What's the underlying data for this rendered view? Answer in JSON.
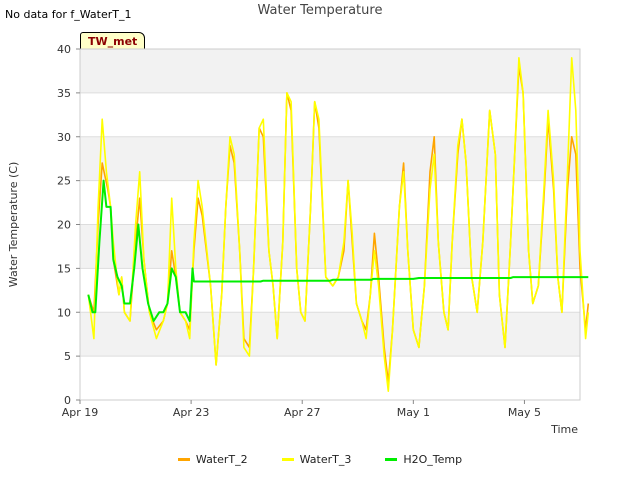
{
  "header": {
    "nodata_text": "No data for f_WaterT_1",
    "title": "Water Temperature",
    "tag": "TW_met"
  },
  "chart_data": {
    "type": "line",
    "title": "Water Temperature",
    "xlabel": "Time",
    "ylabel": "Water Temperature (C)",
    "ylim": [
      0,
      40
    ],
    "yticks": [
      0,
      5,
      10,
      15,
      20,
      25,
      30,
      35,
      40
    ],
    "xlim": [
      0,
      18
    ],
    "xticks": [
      {
        "value": 0,
        "label": "Apr 19"
      },
      {
        "value": 4,
        "label": "Apr 23"
      },
      {
        "value": 8,
        "label": "Apr 27"
      },
      {
        "value": 12,
        "label": "May 1"
      },
      {
        "value": 16,
        "label": "May 5"
      }
    ],
    "x_unit": "days since Apr 19",
    "grid": true,
    "legend_placement": "bottom",
    "series": [
      {
        "name": "WaterT_2",
        "color": "#FFA500",
        "points": [
          [
            0.3,
            12
          ],
          [
            0.5,
            10
          ],
          [
            0.65,
            20
          ],
          [
            0.8,
            27
          ],
          [
            1.0,
            24
          ],
          [
            1.1,
            22
          ],
          [
            1.2,
            16
          ],
          [
            1.4,
            12
          ],
          [
            1.5,
            14
          ],
          [
            1.6,
            10
          ],
          [
            1.8,
            9
          ],
          [
            2.0,
            18
          ],
          [
            2.15,
            23
          ],
          [
            2.3,
            16
          ],
          [
            2.5,
            10
          ],
          [
            2.75,
            8
          ],
          [
            3.0,
            9
          ],
          [
            3.15,
            11
          ],
          [
            3.3,
            17
          ],
          [
            3.45,
            14
          ],
          [
            3.6,
            10
          ],
          [
            3.8,
            9
          ],
          [
            3.95,
            8
          ],
          [
            4.1,
            17
          ],
          [
            4.25,
            23
          ],
          [
            4.4,
            21
          ],
          [
            4.7,
            13
          ],
          [
            4.9,
            4
          ],
          [
            5.1,
            12
          ],
          [
            5.25,
            22
          ],
          [
            5.4,
            29
          ],
          [
            5.55,
            27
          ],
          [
            5.75,
            17
          ],
          [
            5.9,
            7
          ],
          [
            6.1,
            6
          ],
          [
            6.25,
            15
          ],
          [
            6.45,
            31
          ],
          [
            6.6,
            30
          ],
          [
            6.8,
            17
          ],
          [
            6.95,
            13
          ],
          [
            7.1,
            7
          ],
          [
            7.3,
            18
          ],
          [
            7.45,
            35
          ],
          [
            7.6,
            33
          ],
          [
            7.8,
            15
          ],
          [
            7.95,
            10
          ],
          [
            8.1,
            9
          ],
          [
            8.3,
            22
          ],
          [
            8.45,
            34
          ],
          [
            8.6,
            31
          ],
          [
            8.85,
            14
          ],
          [
            9.1,
            13
          ],
          [
            9.3,
            14
          ],
          [
            9.5,
            17
          ],
          [
            9.65,
            25
          ],
          [
            9.8,
            18
          ],
          [
            9.95,
            11
          ],
          [
            10.15,
            9
          ],
          [
            10.3,
            8
          ],
          [
            10.45,
            12
          ],
          [
            10.6,
            19
          ],
          [
            10.75,
            14
          ],
          [
            10.95,
            6
          ],
          [
            11.1,
            2
          ],
          [
            11.25,
            8
          ],
          [
            11.5,
            22
          ],
          [
            11.65,
            27
          ],
          [
            11.8,
            17
          ],
          [
            12.0,
            8
          ],
          [
            12.2,
            6
          ],
          [
            12.4,
            13
          ],
          [
            12.6,
            26
          ],
          [
            12.75,
            30
          ],
          [
            12.9,
            18
          ],
          [
            13.1,
            10
          ],
          [
            13.25,
            8
          ],
          [
            13.4,
            18
          ],
          [
            13.6,
            28
          ],
          [
            13.75,
            32
          ],
          [
            13.9,
            27
          ],
          [
            14.1,
            14
          ],
          [
            14.3,
            10
          ],
          [
            14.5,
            18
          ],
          [
            14.75,
            33
          ],
          [
            14.95,
            28
          ],
          [
            15.1,
            12
          ],
          [
            15.3,
            6
          ],
          [
            15.5,
            18
          ],
          [
            15.65,
            28
          ],
          [
            15.8,
            38
          ],
          [
            15.95,
            35
          ],
          [
            16.15,
            17
          ],
          [
            16.3,
            11
          ],
          [
            16.5,
            13
          ],
          [
            16.7,
            23
          ],
          [
            16.85,
            32
          ],
          [
            17.05,
            24
          ],
          [
            17.2,
            14
          ],
          [
            17.35,
            10
          ],
          [
            17.55,
            24
          ],
          [
            17.7,
            30
          ],
          [
            17.85,
            28
          ],
          [
            18.0,
            15
          ],
          [
            18.2,
            8
          ],
          [
            18.3,
            11
          ]
        ]
      },
      {
        "name": "WaterT_3",
        "color": "#FFFF00",
        "points": [
          [
            0.3,
            12
          ],
          [
            0.5,
            7
          ],
          [
            0.65,
            22
          ],
          [
            0.8,
            32
          ],
          [
            0.95,
            26
          ],
          [
            1.1,
            22
          ],
          [
            1.2,
            18
          ],
          [
            1.4,
            12
          ],
          [
            1.5,
            14
          ],
          [
            1.6,
            10
          ],
          [
            1.8,
            9
          ],
          [
            2.0,
            20
          ],
          [
            2.15,
            26
          ],
          [
            2.3,
            16
          ],
          [
            2.5,
            10
          ],
          [
            2.75,
            7
          ],
          [
            3.0,
            9
          ],
          [
            3.15,
            11
          ],
          [
            3.3,
            23
          ],
          [
            3.45,
            15
          ],
          [
            3.6,
            10
          ],
          [
            3.8,
            9
          ],
          [
            3.95,
            7
          ],
          [
            4.1,
            18
          ],
          [
            4.25,
            25
          ],
          [
            4.4,
            22
          ],
          [
            4.7,
            13
          ],
          [
            4.9,
            4
          ],
          [
            5.1,
            12
          ],
          [
            5.25,
            22
          ],
          [
            5.4,
            30
          ],
          [
            5.55,
            28
          ],
          [
            5.75,
            17
          ],
          [
            5.9,
            6
          ],
          [
            6.1,
            5
          ],
          [
            6.25,
            15
          ],
          [
            6.45,
            31
          ],
          [
            6.6,
            32
          ],
          [
            6.8,
            17
          ],
          [
            6.95,
            13
          ],
          [
            7.1,
            7
          ],
          [
            7.3,
            18
          ],
          [
            7.45,
            35
          ],
          [
            7.6,
            34
          ],
          [
            7.8,
            15
          ],
          [
            7.95,
            10
          ],
          [
            8.1,
            9
          ],
          [
            8.3,
            22
          ],
          [
            8.45,
            34
          ],
          [
            8.6,
            32
          ],
          [
            8.85,
            14
          ],
          [
            9.1,
            13
          ],
          [
            9.3,
            14
          ],
          [
            9.5,
            18
          ],
          [
            9.65,
            25
          ],
          [
            9.8,
            19
          ],
          [
            9.95,
            11
          ],
          [
            10.15,
            9
          ],
          [
            10.3,
            7
          ],
          [
            10.45,
            12
          ],
          [
            10.6,
            17
          ],
          [
            10.75,
            13
          ],
          [
            10.95,
            5
          ],
          [
            11.1,
            1
          ],
          [
            11.25,
            8
          ],
          [
            11.5,
            22
          ],
          [
            11.65,
            26
          ],
          [
            11.8,
            17
          ],
          [
            12.0,
            8
          ],
          [
            12.2,
            6
          ],
          [
            12.4,
            13
          ],
          [
            12.6,
            24
          ],
          [
            12.75,
            28
          ],
          [
            12.9,
            18
          ],
          [
            13.1,
            10
          ],
          [
            13.25,
            8
          ],
          [
            13.4,
            18
          ],
          [
            13.6,
            29
          ],
          [
            13.75,
            32
          ],
          [
            13.9,
            27
          ],
          [
            14.1,
            14
          ],
          [
            14.3,
            10
          ],
          [
            14.5,
            18
          ],
          [
            14.75,
            33
          ],
          [
            14.95,
            28
          ],
          [
            15.1,
            12
          ],
          [
            15.3,
            6
          ],
          [
            15.5,
            18
          ],
          [
            15.65,
            28
          ],
          [
            15.8,
            39
          ],
          [
            15.95,
            35
          ],
          [
            16.15,
            17
          ],
          [
            16.3,
            11
          ],
          [
            16.5,
            13
          ],
          [
            16.7,
            24
          ],
          [
            16.85,
            33
          ],
          [
            17.05,
            25
          ],
          [
            17.2,
            14
          ],
          [
            17.35,
            10
          ],
          [
            17.55,
            26
          ],
          [
            17.7,
            39
          ],
          [
            17.85,
            33
          ],
          [
            18.0,
            17
          ],
          [
            18.2,
            7
          ],
          [
            18.3,
            10
          ]
        ]
      },
      {
        "name": "H2O_Temp",
        "color": "#00EE00",
        "points": [
          [
            0.3,
            12
          ],
          [
            0.45,
            10
          ],
          [
            0.55,
            10
          ],
          [
            0.7,
            18
          ],
          [
            0.85,
            25
          ],
          [
            0.95,
            22
          ],
          [
            1.1,
            22
          ],
          [
            1.2,
            16
          ],
          [
            1.35,
            14
          ],
          [
            1.5,
            13
          ],
          [
            1.6,
            11
          ],
          [
            1.8,
            11
          ],
          [
            1.95,
            15
          ],
          [
            2.1,
            20
          ],
          [
            2.25,
            15
          ],
          [
            2.45,
            11
          ],
          [
            2.65,
            9
          ],
          [
            2.85,
            10
          ],
          [
            3.0,
            10
          ],
          [
            3.15,
            11
          ],
          [
            3.3,
            15
          ],
          [
            3.45,
            14
          ],
          [
            3.6,
            10
          ],
          [
            3.8,
            10
          ],
          [
            3.95,
            9
          ],
          [
            4.05,
            15
          ],
          [
            4.1,
            13.5
          ],
          [
            6.0,
            13.5
          ],
          [
            6.5,
            13.5
          ],
          [
            6.6,
            13.6
          ],
          [
            8.5,
            13.6
          ],
          [
            9.0,
            13.6
          ],
          [
            9.1,
            13.7
          ],
          [
            10.5,
            13.7
          ],
          [
            10.55,
            13.8
          ],
          [
            12.0,
            13.8
          ],
          [
            12.2,
            13.9
          ],
          [
            15.5,
            13.9
          ],
          [
            15.6,
            14.0
          ],
          [
            18.3,
            14.0
          ]
        ]
      }
    ]
  }
}
